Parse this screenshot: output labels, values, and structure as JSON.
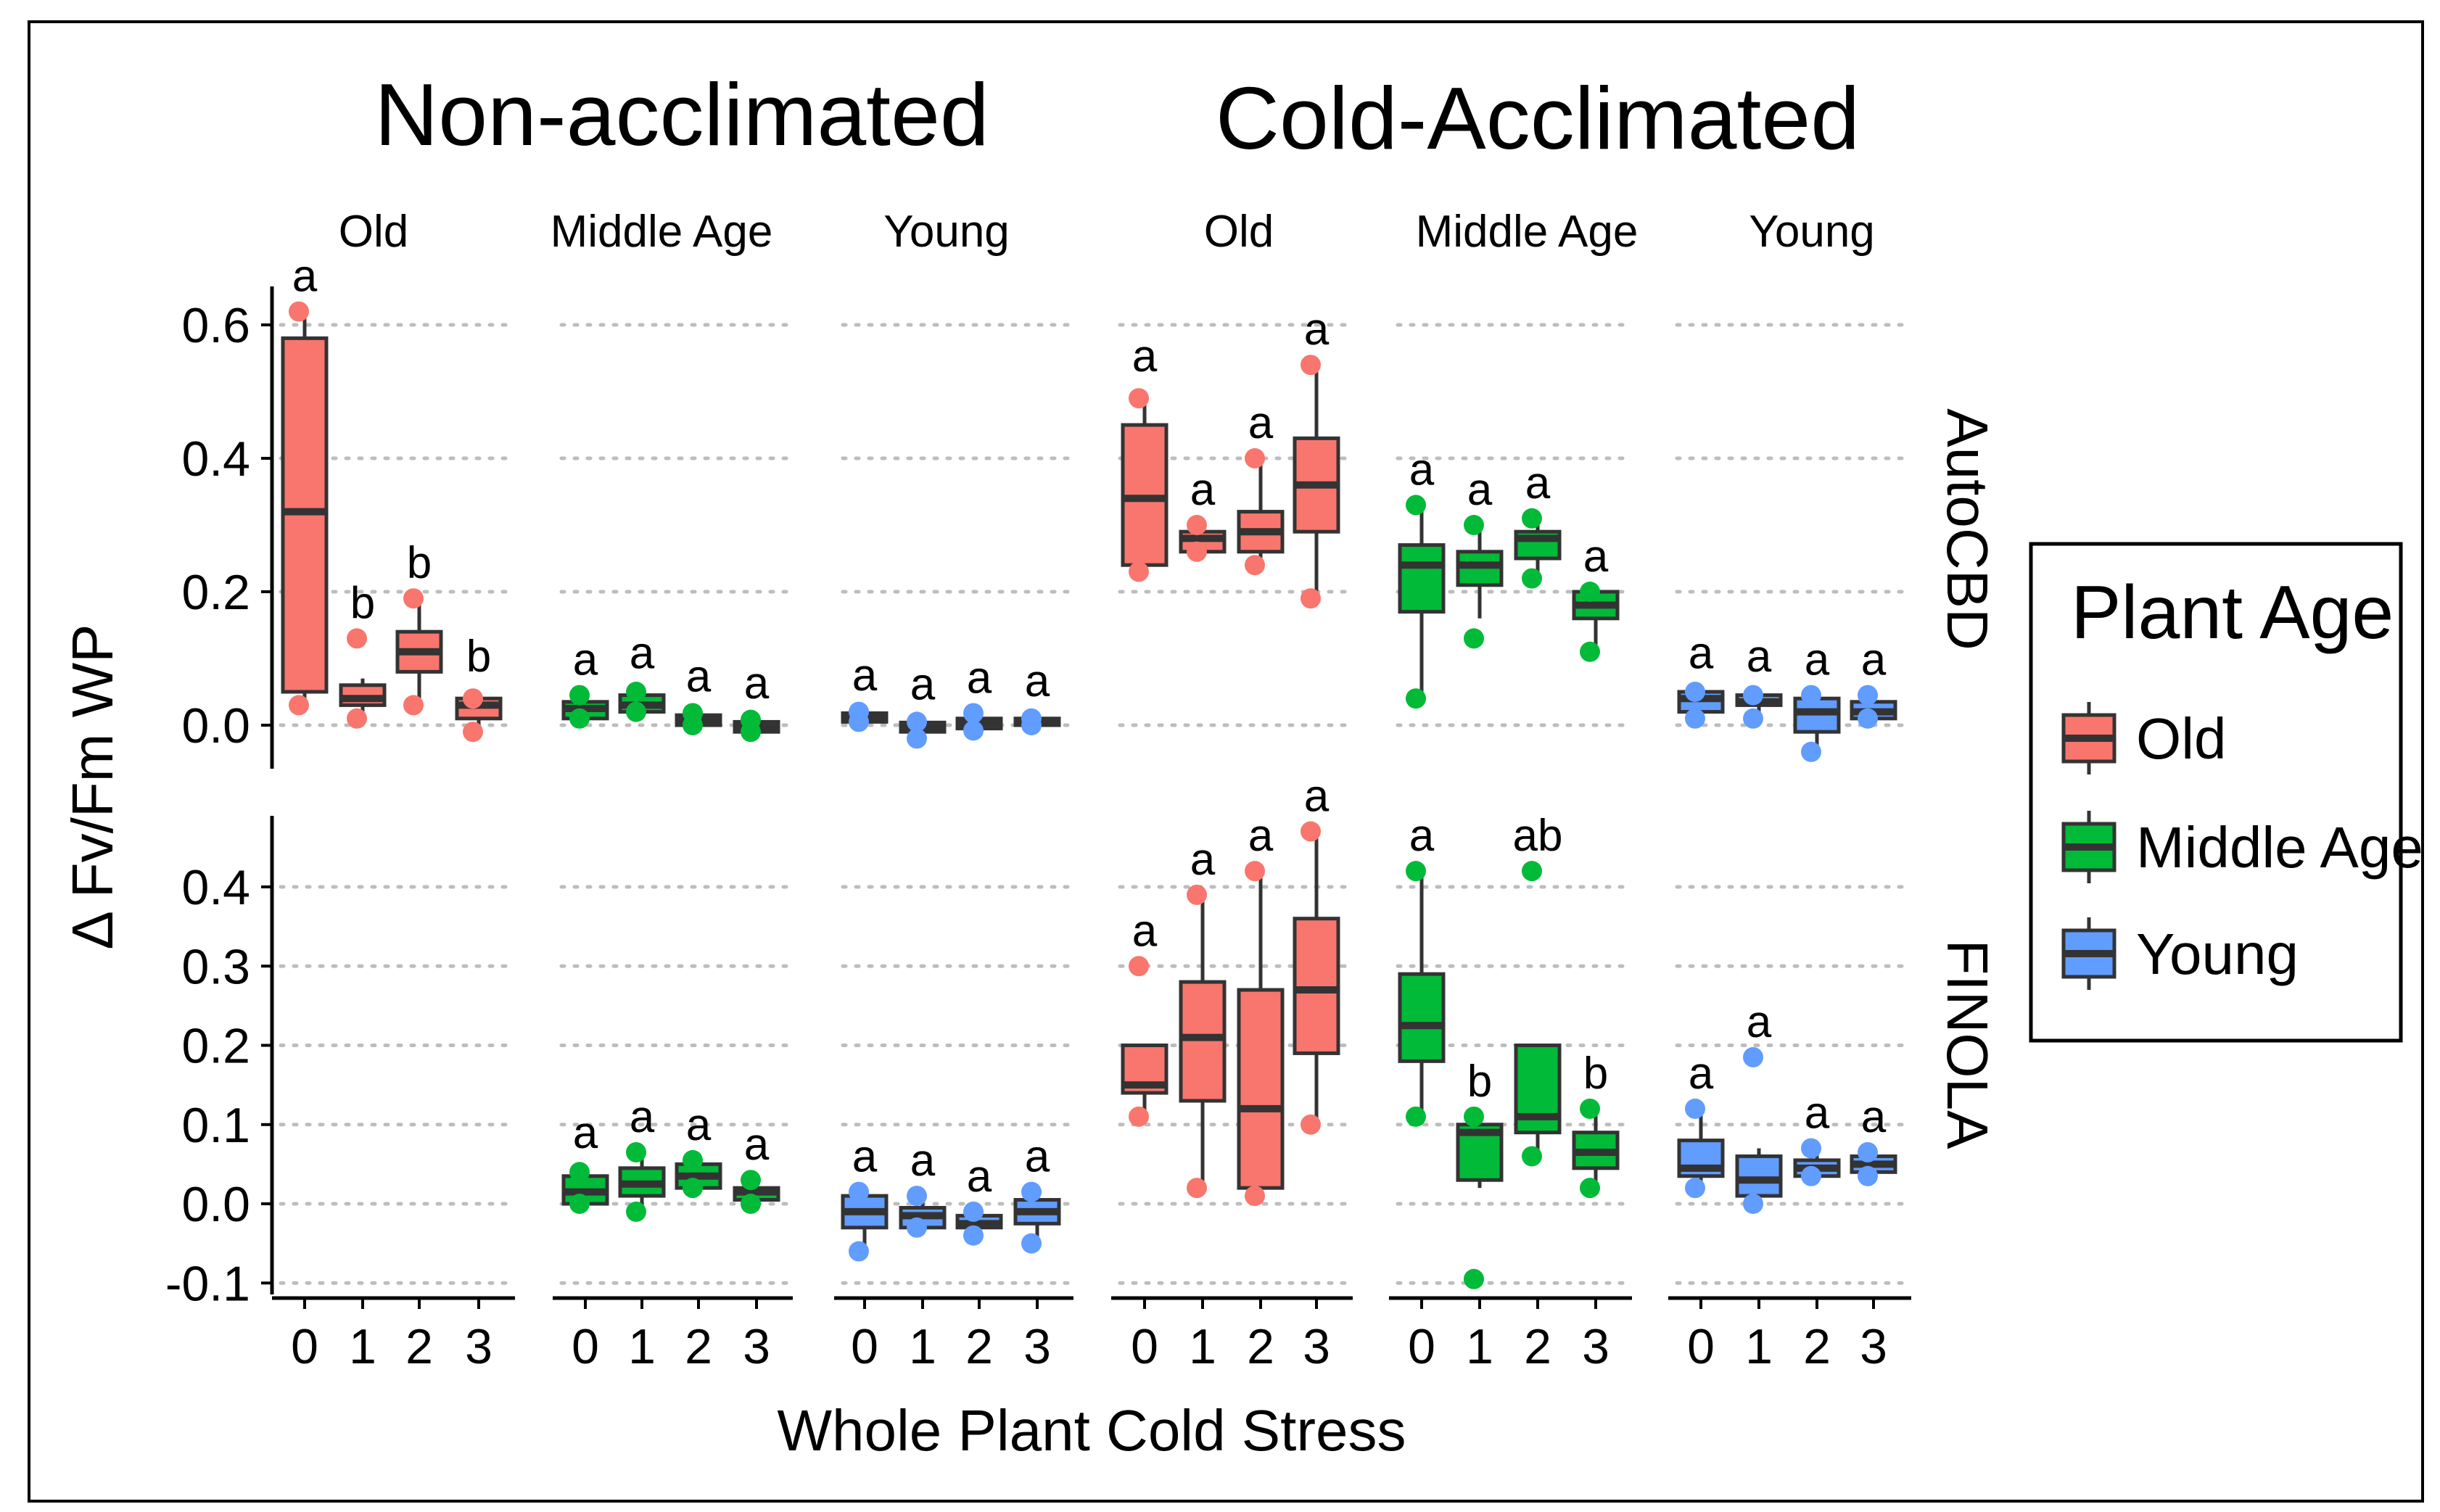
{
  "chart_data": {
    "type": "boxplot",
    "group_titles": [
      "Non-acclimated",
      "Cold-Acclimated"
    ],
    "xlabel": "Whole Plant Cold Stress",
    "ylabel": "Δ Fv/Fm WP",
    "x_categories": [
      "0",
      "1",
      "2",
      "3"
    ],
    "colors": {
      "Old": "#f8766d",
      "Middle Age": "#00ba38",
      "Young": "#619cff"
    },
    "legend": {
      "title": "Plant Age",
      "items": [
        "Old",
        "Middle Age",
        "Young"
      ],
      "position": "right"
    },
    "panels": [
      {
        "group": "Non-acclimated",
        "age": "Old"
      },
      {
        "group": "Non-acclimated",
        "age": "Middle Age"
      },
      {
        "group": "Non-acclimated",
        "age": "Young"
      },
      {
        "group": "Cold-Acclimated",
        "age": "Old"
      },
      {
        "group": "Cold-Acclimated",
        "age": "Middle Age"
      },
      {
        "group": "Cold-Acclimated",
        "age": "Young"
      }
    ],
    "rows": [
      {
        "label": "AutoCBD",
        "ylim": [
          -0.06,
          0.64
        ],
        "yticks": [
          0.0,
          0.2,
          0.4,
          0.6
        ],
        "ytick_labels": [
          "0.0",
          "0.2",
          "0.4",
          "0.6"
        ],
        "data": [
          [
            {
              "q1": 0.05,
              "median": 0.32,
              "q3": 0.58,
              "lo": 0.04,
              "hi": 0.61,
              "pts": [
                0.62,
                0.03
              ],
              "letter": "a"
            },
            {
              "q1": 0.03,
              "median": 0.04,
              "q3": 0.06,
              "lo": 0.01,
              "hi": 0.07,
              "pts": [
                0.13,
                0.01
              ],
              "letter": "b"
            },
            {
              "q1": 0.08,
              "median": 0.11,
              "q3": 0.14,
              "lo": 0.03,
              "hi": 0.19,
              "pts": [
                0.19,
                0.03
              ],
              "letter": "b"
            },
            {
              "q1": 0.01,
              "median": 0.03,
              "q3": 0.04,
              "lo": -0.01,
              "hi": 0.05,
              "pts": [
                0.04,
                -0.01
              ],
              "letter": "b"
            }
          ],
          [
            {
              "q1": 0.01,
              "median": 0.025,
              "q3": 0.035,
              "lo": 0.0,
              "hi": 0.045,
              "pts": [
                0.045,
                0.01
              ],
              "letter": "a"
            },
            {
              "q1": 0.02,
              "median": 0.03,
              "q3": 0.045,
              "lo": 0.01,
              "hi": 0.055,
              "pts": [
                0.05,
                0.02
              ],
              "letter": "a"
            },
            {
              "q1": 0.0,
              "median": 0.008,
              "q3": 0.015,
              "lo": -0.005,
              "hi": 0.02,
              "pts": [
                0.018,
                0.0
              ],
              "letter": "a"
            },
            {
              "q1": -0.01,
              "median": -0.003,
              "q3": 0.005,
              "lo": -0.015,
              "hi": 0.01,
              "pts": [
                0.008,
                -0.01
              ],
              "letter": "a"
            }
          ],
          [
            {
              "q1": 0.005,
              "median": 0.012,
              "q3": 0.018,
              "lo": 0.0,
              "hi": 0.022,
              "pts": [
                0.02,
                0.005
              ],
              "letter": "a"
            },
            {
              "q1": -0.01,
              "median": -0.004,
              "q3": 0.004,
              "lo": -0.02,
              "hi": 0.008,
              "pts": [
                0.005,
                -0.02
              ],
              "letter": "a"
            },
            {
              "q1": -0.005,
              "median": 0.003,
              "q3": 0.01,
              "lo": -0.012,
              "hi": 0.018,
              "pts": [
                0.018,
                -0.008
              ],
              "letter": "a"
            },
            {
              "q1": 0.0,
              "median": 0.005,
              "q3": 0.01,
              "lo": -0.003,
              "hi": 0.013,
              "pts": [
                0.01,
                0.0
              ],
              "letter": "a"
            }
          ],
          [
            {
              "q1": 0.24,
              "median": 0.34,
              "q3": 0.45,
              "lo": 0.23,
              "hi": 0.5,
              "pts": [
                0.49,
                0.23
              ],
              "letter": "a"
            },
            {
              "q1": 0.26,
              "median": 0.28,
              "q3": 0.29,
              "lo": 0.25,
              "hi": 0.3,
              "pts": [
                0.3,
                0.26
              ],
              "letter": "a"
            },
            {
              "q1": 0.26,
              "median": 0.29,
              "q3": 0.32,
              "lo": 0.25,
              "hi": 0.4,
              "pts": [
                0.4,
                0.24
              ],
              "letter": "a"
            },
            {
              "q1": 0.29,
              "median": 0.36,
              "q3": 0.43,
              "lo": 0.19,
              "hi": 0.54,
              "pts": [
                0.54,
                0.19
              ],
              "letter": "a"
            }
          ],
          [
            {
              "q1": 0.17,
              "median": 0.24,
              "q3": 0.27,
              "lo": 0.04,
              "hi": 0.33,
              "pts": [
                0.33,
                0.04
              ],
              "letter": "a"
            },
            {
              "q1": 0.21,
              "median": 0.24,
              "q3": 0.26,
              "lo": 0.16,
              "hi": 0.3,
              "pts": [
                0.3,
                0.13
              ],
              "letter": "a"
            },
            {
              "q1": 0.25,
              "median": 0.28,
              "q3": 0.29,
              "lo": 0.22,
              "hi": 0.3,
              "pts": [
                0.31,
                0.22
              ],
              "letter": "a"
            },
            {
              "q1": 0.16,
              "median": 0.18,
              "q3": 0.2,
              "lo": 0.11,
              "hi": 0.2,
              "pts": [
                0.2,
                0.11
              ],
              "letter": "a"
            }
          ],
          [
            {
              "q1": 0.02,
              "median": 0.04,
              "q3": 0.05,
              "lo": 0.01,
              "hi": 0.055,
              "pts": [
                0.05,
                0.01
              ],
              "letter": "a"
            },
            {
              "q1": 0.03,
              "median": 0.035,
              "q3": 0.045,
              "lo": 0.01,
              "hi": 0.05,
              "pts": [
                0.045,
                0.01
              ],
              "letter": "a"
            },
            {
              "q1": -0.01,
              "median": 0.02,
              "q3": 0.04,
              "lo": -0.04,
              "hi": 0.045,
              "pts": [
                0.045,
                -0.04
              ],
              "letter": "a"
            },
            {
              "q1": 0.01,
              "median": 0.02,
              "q3": 0.035,
              "lo": 0.005,
              "hi": 0.045,
              "pts": [
                0.045,
                0.01
              ],
              "letter": "a"
            }
          ]
        ]
      },
      {
        "label": "FINOLA",
        "ylim": [
          -0.12,
          0.5
        ],
        "yticks": [
          -0.1,
          0.0,
          0.1,
          0.2,
          0.3,
          0.4
        ],
        "ytick_labels": [
          "-0.1",
          "0.0",
          "0.1",
          "0.2",
          "0.3",
          "0.4"
        ],
        "data": [
          [
            null,
            null,
            null,
            null
          ],
          [
            {
              "q1": 0.0,
              "median": 0.015,
              "q3": 0.035,
              "lo": -0.005,
              "hi": 0.045,
              "pts": [
                0.04,
                0.0
              ],
              "letter": "a"
            },
            {
              "q1": 0.01,
              "median": 0.025,
              "q3": 0.045,
              "lo": -0.01,
              "hi": 0.065,
              "pts": [
                0.065,
                -0.01
              ],
              "letter": "a"
            },
            {
              "q1": 0.02,
              "median": 0.035,
              "q3": 0.05,
              "lo": 0.015,
              "hi": 0.055,
              "pts": [
                0.055,
                0.02
              ],
              "letter": "a"
            },
            {
              "q1": 0.005,
              "median": 0.015,
              "q3": 0.02,
              "lo": 0.0,
              "hi": 0.03,
              "pts": [
                0.03,
                0.0
              ],
              "letter": "a"
            }
          ],
          [
            {
              "q1": -0.03,
              "median": -0.01,
              "q3": 0.01,
              "lo": -0.06,
              "hi": 0.015,
              "pts": [
                0.015,
                -0.06
              ],
              "letter": "a"
            },
            {
              "q1": -0.03,
              "median": -0.015,
              "q3": -0.005,
              "lo": -0.035,
              "hi": 0.01,
              "pts": [
                0.01,
                -0.03
              ],
              "letter": "a"
            },
            {
              "q1": -0.03,
              "median": -0.025,
              "q3": -0.015,
              "lo": -0.04,
              "hi": -0.01,
              "pts": [
                -0.01,
                -0.04
              ],
              "letter": "a"
            },
            {
              "q1": -0.025,
              "median": -0.01,
              "q3": 0.005,
              "lo": -0.05,
              "hi": 0.015,
              "pts": [
                0.015,
                -0.05
              ],
              "letter": "a"
            }
          ],
          [
            {
              "q1": 0.14,
              "median": 0.15,
              "q3": 0.2,
              "lo": 0.11,
              "hi": 0.2,
              "pts": [
                0.3,
                0.11
              ],
              "letter": "a"
            },
            {
              "q1": 0.13,
              "median": 0.21,
              "q3": 0.28,
              "lo": 0.02,
              "hi": 0.39,
              "pts": [
                0.39,
                0.02
              ],
              "letter": "a"
            },
            {
              "q1": 0.02,
              "median": 0.12,
              "q3": 0.27,
              "lo": 0.01,
              "hi": 0.42,
              "pts": [
                0.42,
                0.01
              ],
              "letter": "a"
            },
            {
              "q1": 0.19,
              "median": 0.27,
              "q3": 0.36,
              "lo": 0.1,
              "hi": 0.47,
              "pts": [
                0.47,
                0.1
              ],
              "letter": "a"
            }
          ],
          [
            {
              "q1": 0.18,
              "median": 0.225,
              "q3": 0.29,
              "lo": 0.11,
              "hi": 0.42,
              "pts": [
                0.42,
                0.11
              ],
              "letter": "a"
            },
            {
              "q1": 0.03,
              "median": 0.09,
              "q3": 0.1,
              "lo": 0.02,
              "hi": 0.11,
              "pts": [
                0.11,
                -0.095
              ],
              "letter": "b"
            },
            {
              "q1": 0.09,
              "median": 0.11,
              "q3": 0.2,
              "lo": 0.06,
              "hi": 0.2,
              "pts": [
                0.42,
                0.06
              ],
              "letter": "ab"
            },
            {
              "q1": 0.045,
              "median": 0.065,
              "q3": 0.09,
              "lo": 0.02,
              "hi": 0.12,
              "pts": [
                0.12,
                0.02
              ],
              "letter": "b"
            }
          ],
          [
            {
              "q1": 0.035,
              "median": 0.045,
              "q3": 0.08,
              "lo": 0.02,
              "hi": 0.12,
              "pts": [
                0.12,
                0.02
              ],
              "letter": "a"
            },
            {
              "q1": 0.01,
              "median": 0.03,
              "q3": 0.06,
              "lo": 0.0,
              "hi": 0.07,
              "pts": [
                0.185,
                0.0
              ],
              "letter": "a"
            },
            {
              "q1": 0.035,
              "median": 0.045,
              "q3": 0.055,
              "lo": 0.03,
              "hi": 0.07,
              "pts": [
                0.07,
                0.035
              ],
              "letter": "a"
            },
            {
              "q1": 0.04,
              "median": 0.05,
              "q3": 0.06,
              "lo": 0.035,
              "hi": 0.065,
              "pts": [
                0.065,
                0.035
              ],
              "letter": "a"
            }
          ]
        ]
      }
    ]
  }
}
